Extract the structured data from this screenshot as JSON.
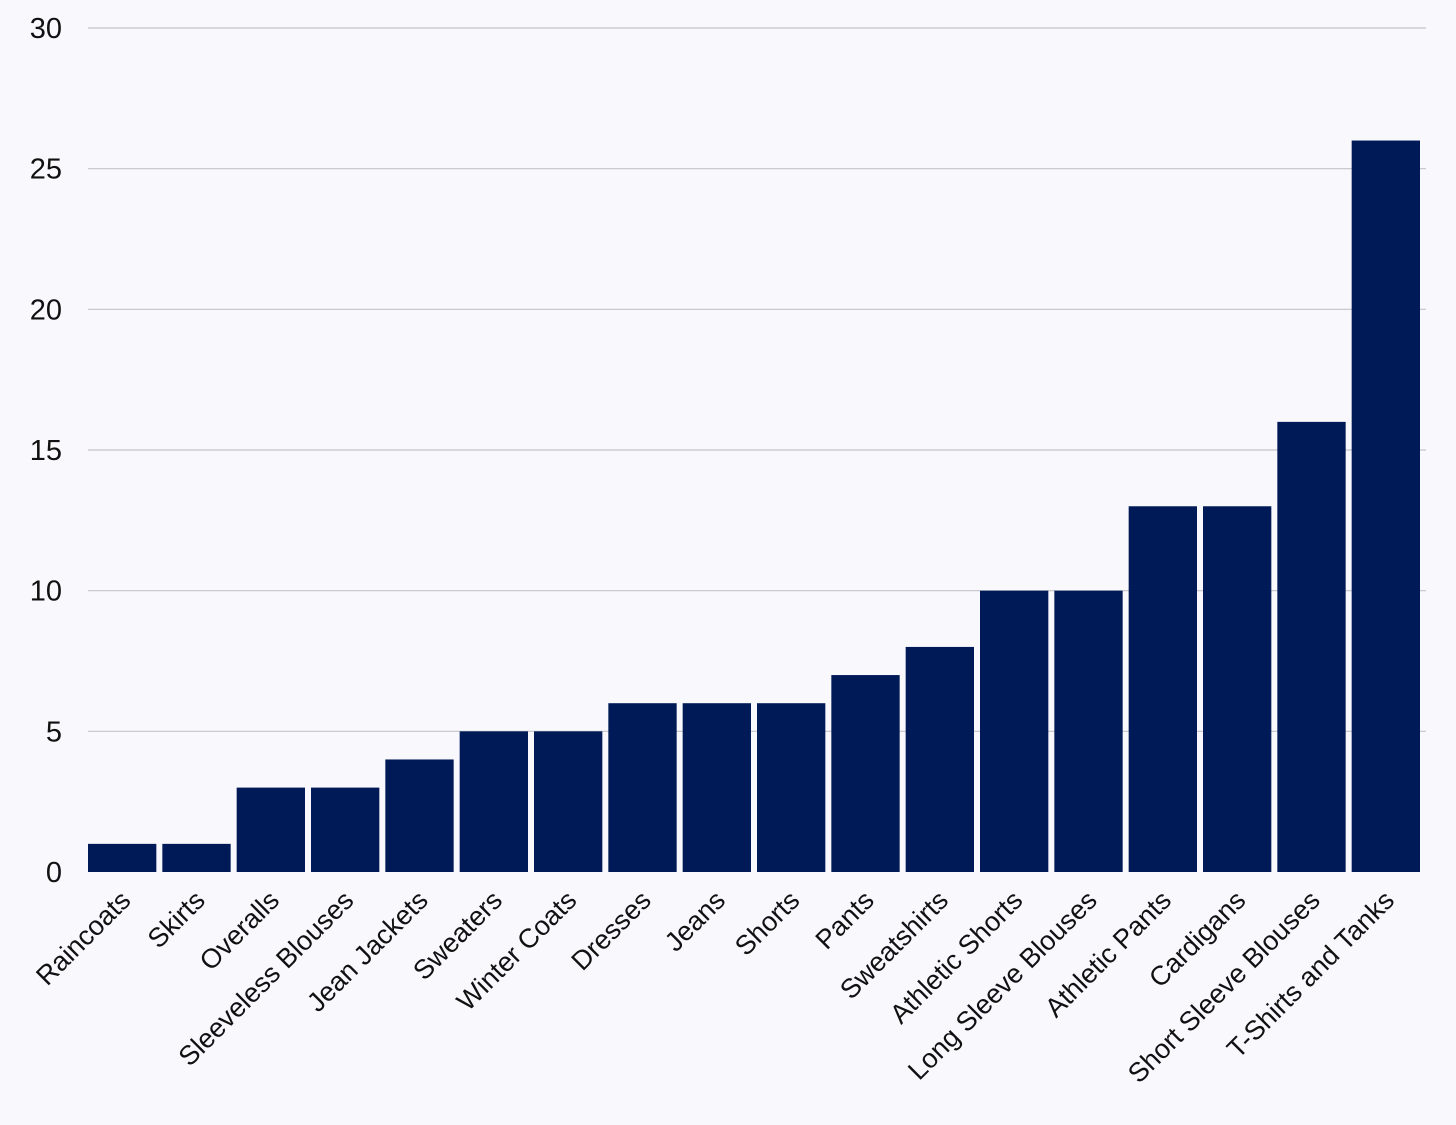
{
  "chart_data": {
    "type": "bar",
    "title": "",
    "xlabel": "",
    "ylabel": "",
    "categories": [
      "Raincoats",
      "Skirts",
      "Overalls",
      "Sleeveless Blouses",
      "Jean Jackets",
      "Sweaters",
      "Winter Coats",
      "Dresses",
      "Jeans",
      "Shorts",
      "Pants",
      "Sweatshirts",
      "Athletic Shorts",
      "Long Sleeve Blouses",
      "Athletic Pants",
      "Cardigans",
      "Short Sleeve Blouses",
      "T-Shirts and Tanks"
    ],
    "values": [
      1,
      1,
      3,
      3,
      4,
      5,
      5,
      6,
      6,
      6,
      7,
      8,
      10,
      10,
      13,
      13,
      16,
      26
    ],
    "ylim": [
      0,
      30
    ],
    "yticks": [
      "0",
      "5",
      "10",
      "15",
      "20",
      "25",
      "30"
    ],
    "grid": true,
    "legend": "none",
    "bar_color": "#001a57",
    "grid_color": "#c4c4c8",
    "background": "#f9f8fd"
  }
}
